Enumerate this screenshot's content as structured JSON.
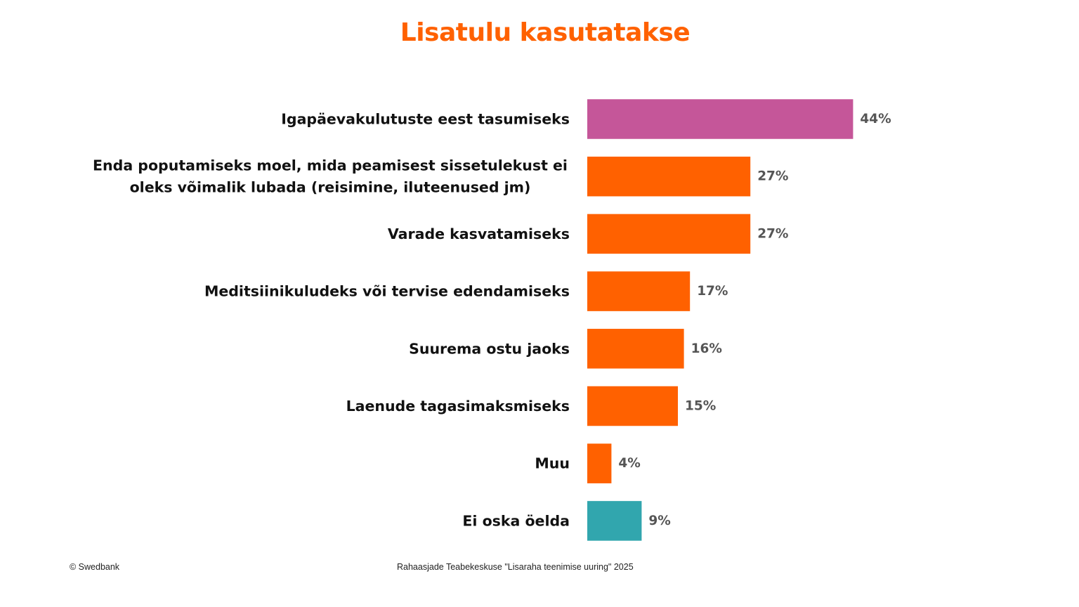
{
  "page": {
    "footer_left": "© Swedbank",
    "footer_center": "Rahaasjade Teabekeskuse \"Lisaraha teenimise uuring\" 2025"
  },
  "colors": {
    "title": "#ff6100",
    "default_bar": "#ff6100",
    "highlight_bar": "#c55699",
    "neutral_bar": "#31a6ae"
  },
  "chart_data": {
    "type": "bar",
    "orientation": "horizontal",
    "title": "Lisatulu kasutatakse",
    "categories": [
      [
        "Igapäevakulutuste eest tasumiseks"
      ],
      [
        "Enda poputamiseks moel, mida peamisest sissetulekust ei",
        "oleks võimalik lubada (reisimine, iluteenused jm)"
      ],
      [
        "Varade kasvatamiseks"
      ],
      [
        "Meditsiinikuludeks või tervise edendamiseks"
      ],
      [
        "Suurema ostu jaoks"
      ],
      [
        "Laenude tagasimaksmiseks"
      ],
      [
        "Muu"
      ],
      [
        "Ei oska öelda"
      ]
    ],
    "values": [
      44,
      27,
      27,
      17,
      16,
      15,
      4,
      9
    ],
    "value_labels": [
      "44%",
      "27%",
      "27%",
      "17%",
      "16%",
      "15%",
      "4%",
      "9%"
    ],
    "bar_colors": [
      "#c55699",
      "#ff6100",
      "#ff6100",
      "#ff6100",
      "#ff6100",
      "#ff6100",
      "#ff6100",
      "#31a6ae"
    ],
    "unit": "%",
    "xlim": [
      0,
      50
    ],
    "grid": false,
    "legend": false
  }
}
